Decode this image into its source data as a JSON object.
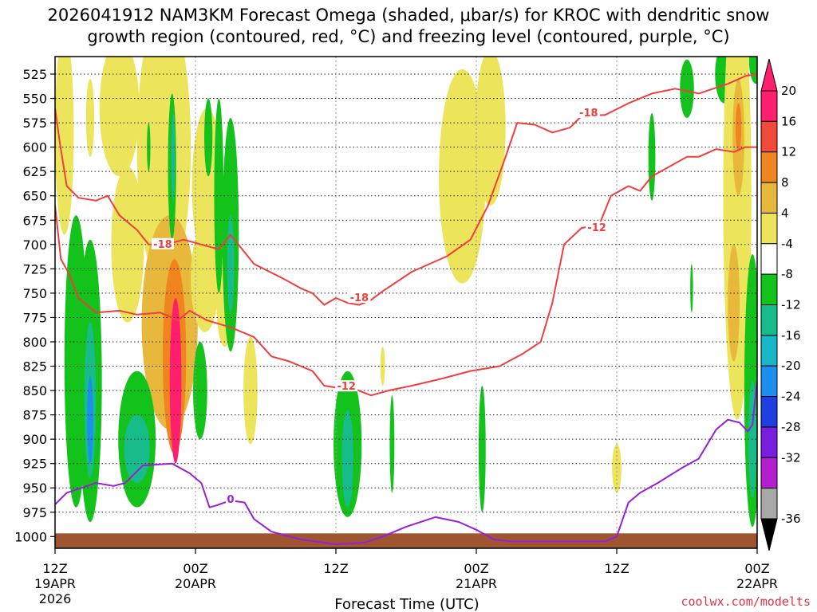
{
  "chart_data": {
    "type": "heatmap",
    "title_line1": "2026041912 NAM3KM Forecast Omega (shaded, μbar/s) for KROC with dendritic snow",
    "title_line2": "growth region (contoured, red, °C) and freezing level (contoured, purple, °C)",
    "xlabel": "Forecast Time (UTC)",
    "credit": "coolwx.com/modelts",
    "x_range_hours": [
      0,
      60
    ],
    "y_range_hpa": [
      507,
      1012
    ],
    "x_ticks": [
      {
        "hour": 0,
        "line1": "12Z",
        "line2": "19APR",
        "line3": "2026"
      },
      {
        "hour": 12,
        "line1": "00Z",
        "line2": "20APR",
        "line3": ""
      },
      {
        "hour": 24,
        "line1": "12Z",
        "line2": "",
        "line3": ""
      },
      {
        "hour": 36,
        "line1": "00Z",
        "line2": "21APR",
        "line3": ""
      },
      {
        "hour": 48,
        "line1": "12Z",
        "line2": "",
        "line3": ""
      },
      {
        "hour": 60,
        "line1": "00Z",
        "line2": "22APR",
        "line3": ""
      }
    ],
    "y_ticks": [
      "525",
      "550",
      "575",
      "600",
      "625",
      "650",
      "675",
      "700",
      "725",
      "750",
      "775",
      "800",
      "825",
      "850",
      "875",
      "900",
      "925",
      "950",
      "975",
      "1000"
    ],
    "colorbar": {
      "labels": [
        "20",
        "16",
        "12",
        "8",
        "4",
        "-4",
        "-8",
        "-12",
        "-16",
        "-20",
        "-24",
        "-28",
        "-32",
        "-36"
      ],
      "colors": [
        "#ff1f6e",
        "#f04a3a",
        "#f0841f",
        "#e8b83c",
        "#ece45a",
        "#ffffff",
        "#13c21a",
        "#18bb8a",
        "#17b7c8",
        "#1b8ef0",
        "#1f3fe0",
        "#7a1ee0",
        "#b41ed0",
        "#a8a8a8"
      ],
      "top_arrow_color": "#ff1f6e",
      "bottom_arrow_color": "#000000"
    },
    "terrain_color": "#9e5530",
    "surface_pressure": 1000,
    "omega_features": [
      {
        "t": 0.8,
        "p": 585,
        "rx": 0.8,
        "ry": 105,
        "value": 4
      },
      {
        "t": 3.0,
        "p": 570,
        "rx": 0.35,
        "ry": 40,
        "value": 4
      },
      {
        "t": 5.5,
        "p": 560,
        "rx": 1.7,
        "ry": 70,
        "value": 4
      },
      {
        "t": 6.2,
        "p": 700,
        "rx": 1.4,
        "ry": 80,
        "value": 4
      },
      {
        "t": 9.3,
        "p": 600,
        "rx": 2.3,
        "ry": 145,
        "value": 4
      },
      {
        "t": 9.8,
        "p": 780,
        "rx": 2.4,
        "ry": 110,
        "value": 8
      },
      {
        "t": 10.2,
        "p": 815,
        "rx": 1.0,
        "ry": 100,
        "value": 12
      },
      {
        "t": 10.3,
        "p": 840,
        "rx": 0.5,
        "ry": 85,
        "value": 20
      },
      {
        "t": 10.0,
        "p": 620,
        "rx": 0.35,
        "ry": 75,
        "value": -8
      },
      {
        "t": 10.1,
        "p": 610,
        "rx": 0.18,
        "ry": 45,
        "value": -12
      },
      {
        "t": 8.0,
        "p": 600,
        "rx": 0.15,
        "ry": 25,
        "value": -8
      },
      {
        "t": 11.2,
        "p": 580,
        "rx": 0.35,
        "ry": 40,
        "value": 4
      },
      {
        "t": 13.0,
        "p": 640,
        "rx": 1.3,
        "ry": 80,
        "value": 4
      },
      {
        "t": 12.8,
        "p": 735,
        "rx": 1.2,
        "ry": 55,
        "value": 4
      },
      {
        "t": 14.5,
        "p": 760,
        "rx": 0.7,
        "ry": 45,
        "value": 4
      },
      {
        "t": 16.7,
        "p": 850,
        "rx": 0.6,
        "ry": 55,
        "value": 4
      },
      {
        "t": 15.0,
        "p": 690,
        "rx": 0.7,
        "ry": 120,
        "value": -8
      },
      {
        "t": 15.0,
        "p": 720,
        "rx": 0.3,
        "ry": 50,
        "value": -12
      },
      {
        "t": 14.0,
        "p": 650,
        "rx": 0.4,
        "ry": 100,
        "value": -8
      },
      {
        "t": 13.1,
        "p": 590,
        "rx": 0.35,
        "ry": 40,
        "value": -8
      },
      {
        "t": 1.8,
        "p": 820,
        "rx": 1.0,
        "ry": 150,
        "value": -8
      },
      {
        "t": 3.0,
        "p": 840,
        "rx": 1.0,
        "ry": 145,
        "value": -8
      },
      {
        "t": 3.0,
        "p": 860,
        "rx": 0.5,
        "ry": 80,
        "value": -12
      },
      {
        "t": 3.0,
        "p": 880,
        "rx": 0.25,
        "ry": 45,
        "value": -20
      },
      {
        "t": 7.0,
        "p": 900,
        "rx": 1.6,
        "ry": 70,
        "value": -8
      },
      {
        "t": 7.0,
        "p": 910,
        "rx": 1.1,
        "ry": 35,
        "value": -12
      },
      {
        "t": 12.4,
        "p": 850,
        "rx": 0.6,
        "ry": 50,
        "value": -8
      },
      {
        "t": 25.0,
        "p": 905,
        "rx": 1.2,
        "ry": 75,
        "value": -8
      },
      {
        "t": 25.0,
        "p": 920,
        "rx": 0.5,
        "ry": 50,
        "value": -12
      },
      {
        "t": 28.0,
        "p": 825,
        "rx": 0.2,
        "ry": 20,
        "value": 4
      },
      {
        "t": 28.8,
        "p": 905,
        "rx": 0.2,
        "ry": 50,
        "value": -8
      },
      {
        "t": 34.8,
        "p": 630,
        "rx": 2.0,
        "ry": 110,
        "value": 4
      },
      {
        "t": 37.2,
        "p": 580,
        "rx": 1.3,
        "ry": 80,
        "value": 4
      },
      {
        "t": 36.5,
        "p": 910,
        "rx": 0.3,
        "ry": 65,
        "value": -8
      },
      {
        "t": 48.0,
        "p": 930,
        "rx": 0.4,
        "ry": 25,
        "value": 4
      },
      {
        "t": 51.0,
        "p": 610,
        "rx": 0.3,
        "ry": 45,
        "value": -8
      },
      {
        "t": 54.0,
        "p": 540,
        "rx": 0.6,
        "ry": 30,
        "value": -8
      },
      {
        "t": 57.2,
        "p": 525,
        "rx": 0.8,
        "ry": 30,
        "value": -8
      },
      {
        "t": 58.3,
        "p": 650,
        "rx": 1.2,
        "ry": 230,
        "value": 4
      },
      {
        "t": 58.4,
        "p": 590,
        "rx": 0.5,
        "ry": 60,
        "value": 8
      },
      {
        "t": 58.4,
        "p": 580,
        "rx": 0.25,
        "ry": 25,
        "value": 12
      },
      {
        "t": 58.0,
        "p": 760,
        "rx": 0.5,
        "ry": 60,
        "value": 8
      },
      {
        "t": 54.4,
        "p": 745,
        "rx": 0.12,
        "ry": 25,
        "value": -8
      },
      {
        "t": 59.6,
        "p": 850,
        "rx": 0.7,
        "ry": 140,
        "value": -8
      },
      {
        "t": 59.6,
        "p": 900,
        "rx": 0.35,
        "ry": 60,
        "value": -12
      },
      {
        "t": 59.9,
        "p": 510,
        "rx": 0.6,
        "ry": 25,
        "value": -8
      }
    ],
    "dgz_contours": [
      {
        "value": -18,
        "points": [
          [
            0,
            560
          ],
          [
            0.4,
            595
          ],
          [
            1.0,
            640
          ],
          [
            2.0,
            652
          ],
          [
            3.5,
            655
          ],
          [
            4.5,
            650
          ],
          [
            5.5,
            670
          ],
          [
            7.0,
            685
          ],
          [
            8.0,
            700
          ],
          [
            9.5,
            700
          ],
          [
            11.0,
            695
          ],
          [
            12.5,
            700
          ],
          [
            14.0,
            705
          ],
          [
            15.0,
            690
          ],
          [
            17.0,
            720
          ],
          [
            19.5,
            735
          ],
          [
            21.0,
            745
          ],
          [
            22.0,
            750
          ],
          [
            23.0,
            762
          ],
          [
            24.0,
            755
          ],
          [
            25.0,
            760
          ],
          [
            26.0,
            762
          ],
          [
            27.0,
            757
          ],
          [
            28.0,
            748
          ],
          [
            30.5,
            728
          ],
          [
            33.5,
            712
          ],
          [
            35.5,
            695
          ],
          [
            37.0,
            660
          ],
          [
            38.5,
            610
          ],
          [
            39.5,
            575
          ],
          [
            41.0,
            577
          ],
          [
            42.5,
            585
          ],
          [
            44.0,
            580
          ],
          [
            45.0,
            568
          ],
          [
            47.0,
            567
          ],
          [
            49.0,
            555
          ],
          [
            51.0,
            545
          ],
          [
            53.0,
            540
          ],
          [
            55.0,
            545
          ],
          [
            57.5,
            535
          ],
          [
            59.0,
            527
          ],
          [
            60.0,
            525
          ]
        ],
        "labels": [
          {
            "t": 9.2,
            "p": 700,
            "text": "-18"
          },
          {
            "t": 26.0,
            "p": 755,
            "text": "-18"
          },
          {
            "t": 45.6,
            "p": 565,
            "text": "-18"
          }
        ]
      },
      {
        "value": -12,
        "points": [
          [
            0,
            660
          ],
          [
            0.5,
            715
          ],
          [
            1.2,
            730
          ],
          [
            2.0,
            755
          ],
          [
            3.5,
            770
          ],
          [
            5.5,
            768
          ],
          [
            7.0,
            772
          ],
          [
            9.0,
            770
          ],
          [
            10.5,
            778
          ],
          [
            11.5,
            768
          ],
          [
            13.0,
            778
          ],
          [
            15.0,
            785
          ],
          [
            17.0,
            795
          ],
          [
            18.5,
            815
          ],
          [
            20.0,
            820
          ],
          [
            22.0,
            830
          ],
          [
            23.0,
            845
          ],
          [
            24.5,
            848
          ],
          [
            25.5,
            848
          ],
          [
            27.0,
            855
          ],
          [
            28.5,
            850
          ],
          [
            30.5,
            845
          ],
          [
            33.0,
            838
          ],
          [
            35.5,
            830
          ],
          [
            38.0,
            825
          ],
          [
            40.0,
            812
          ],
          [
            41.5,
            800
          ],
          [
            42.5,
            760
          ],
          [
            43.5,
            700
          ],
          [
            45.0,
            683
          ],
          [
            46.5,
            680
          ],
          [
            47.5,
            650
          ],
          [
            49.0,
            640
          ],
          [
            50.0,
            645
          ],
          [
            51.0,
            630
          ],
          [
            52.5,
            620
          ],
          [
            54.0,
            610
          ],
          [
            55.0,
            610
          ],
          [
            56.5,
            602
          ],
          [
            58.0,
            605
          ],
          [
            59.0,
            600
          ],
          [
            60.0,
            600
          ]
        ],
        "labels": [
          {
            "t": 24.9,
            "p": 846,
            "text": "-12"
          },
          {
            "t": 46.3,
            "p": 683,
            "text": "-12"
          }
        ]
      }
    ],
    "freezing_contours": [
      {
        "value": 0,
        "points": [
          [
            0,
            967
          ],
          [
            1.0,
            955
          ],
          [
            3.5,
            945
          ],
          [
            5.0,
            948
          ],
          [
            6.0,
            945
          ],
          [
            7.5,
            927
          ],
          [
            10.0,
            925
          ],
          [
            11.5,
            935
          ],
          [
            12.5,
            945
          ],
          [
            13.2,
            970
          ],
          [
            13.8,
            968
          ],
          [
            15.0,
            963
          ],
          [
            16.2,
            965
          ],
          [
            17.0,
            982
          ],
          [
            18.5,
            995
          ],
          [
            21.0,
            1003
          ],
          [
            24.0,
            1008
          ],
          [
            26.5,
            1006
          ],
          [
            28.0,
            1000
          ],
          [
            30.0,
            990
          ],
          [
            32.5,
            980
          ],
          [
            34.5,
            985
          ],
          [
            36.0,
            993
          ],
          [
            37.5,
            1003
          ],
          [
            39.0,
            1005
          ],
          [
            42.0,
            1005
          ],
          [
            47.0,
            1005
          ],
          [
            48.0,
            1000
          ],
          [
            49.0,
            965
          ],
          [
            50.0,
            955
          ],
          [
            51.5,
            945
          ],
          [
            53.5,
            930
          ],
          [
            55.0,
            920
          ],
          [
            56.5,
            890
          ],
          [
            57.5,
            880
          ],
          [
            58.5,
            883
          ],
          [
            59.2,
            892
          ],
          [
            59.6,
            885
          ],
          [
            60.0,
            840
          ]
        ],
        "labels": [
          {
            "t": 15.0,
            "p": 962,
            "text": "0"
          }
        ]
      }
    ]
  }
}
